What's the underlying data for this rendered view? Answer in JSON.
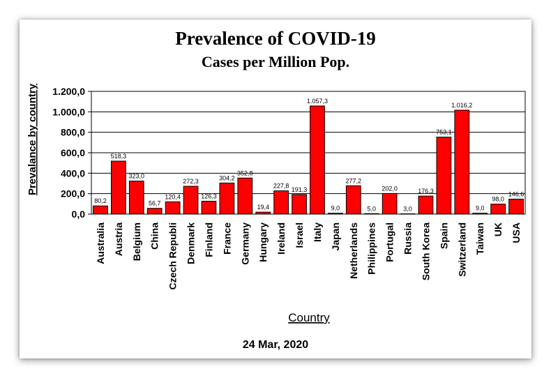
{
  "chart_data": {
    "type": "bar",
    "title": "Prevalence of COVID-19",
    "subtitle": "Cases per Million Pop.",
    "xlabel": "Country",
    "ylabel": "Prevalance by country",
    "footer": "24 Mar, 2020",
    "ylim": [
      0,
      1200
    ],
    "yticks": [
      0,
      200,
      400,
      600,
      800,
      1000,
      1200
    ],
    "ytick_labels": [
      "0,0",
      "200,0",
      "400,0",
      "600,0",
      "800,0",
      "1.000,0",
      "1.200,0"
    ],
    "grid": true,
    "bar_color": "#ff0000",
    "categories": [
      "Australia",
      "Austria",
      "Belgium",
      "China",
      "Czech Republi",
      "Denmark",
      "Finland",
      "France",
      "Germany",
      "Hungary",
      "Ireland",
      "Israel",
      "Italy",
      "Japan",
      "Netherlands",
      "Philippines",
      "Portugal",
      "Russia",
      "South Korea",
      "Spain",
      "Switzerland",
      "Taiwan",
      "UK",
      "USA"
    ],
    "values": [
      80.2,
      518.3,
      323.0,
      56.7,
      120.4,
      272.3,
      126.3,
      304.2,
      352.8,
      19.4,
      227.8,
      191.3,
      1057.3,
      9.0,
      277.2,
      5.0,
      202.0,
      3.0,
      176.3,
      753.1,
      1016.2,
      9.0,
      98.0,
      146.6
    ],
    "value_labels": [
      "80,2",
      "518,3",
      "323,0",
      "56,7",
      "120,4",
      "272,3",
      "126,3",
      "304,2",
      "352,8",
      "19,4",
      "227,8",
      "191,3",
      "1.057,3",
      "9,0",
      "277,2",
      "5,0",
      "202,0",
      "3,0",
      "176,3",
      "753,1",
      "1.016,2",
      "9,0",
      "98,0",
      "146,6"
    ]
  }
}
